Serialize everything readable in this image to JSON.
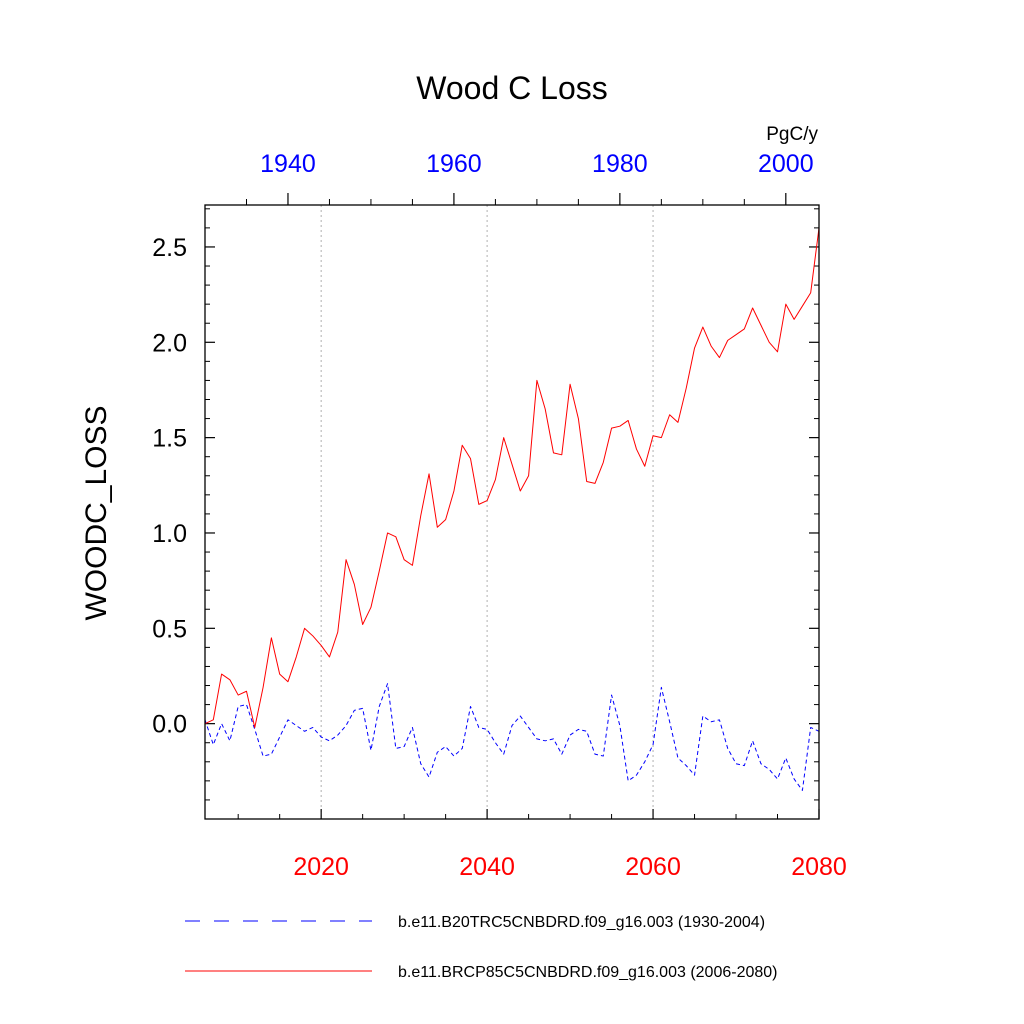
{
  "chart_data": {
    "type": "line",
    "title": "Wood C Loss",
    "ylabel": "WOODC_LOSS",
    "units": "PgC/y",
    "ylim": [
      -0.5,
      2.72
    ],
    "y_ticks": [
      0.0,
      0.5,
      1.0,
      1.5,
      2.0,
      2.5
    ],
    "y_tick_labels": [
      "0.0",
      "0.5",
      "1.0",
      "1.5",
      "2.0",
      "2.5"
    ],
    "grid": "vertical dotted lines at bottom-axis major ticks",
    "legend_position": "bottom",
    "colors": {
      "hist": "#0000ff",
      "future": "#ff0000"
    },
    "top_axis": {
      "xlim": [
        1930,
        2004
      ],
      "ticks": [
        1940,
        1960,
        1980,
        2000
      ],
      "tick_labels": [
        "1940",
        "1960",
        "1980",
        "2000"
      ],
      "minor_ticks": [
        1935,
        1945,
        1950,
        1955,
        1965,
        1970,
        1975,
        1985,
        1990,
        1995
      ],
      "color": "#0000ff"
    },
    "bottom_axis": {
      "xlim": [
        2006,
        2080
      ],
      "ticks": [
        2020,
        2040,
        2060,
        2080
      ],
      "tick_labels": [
        "2020",
        "2040",
        "2060",
        "2080"
      ],
      "minor_ticks": [
        2010,
        2015,
        2025,
        2030,
        2035,
        2045,
        2050,
        2055,
        2065,
        2070,
        2075
      ],
      "color": "#ff0000"
    },
    "series": [
      {
        "name": "b.e11.B20TRC5CNBDRD.f09_g16.003 (1930-2004)",
        "axis": "top",
        "style": "dashed",
        "color": "#0000ff",
        "x_start": 1930,
        "values": [
          0.02,
          -0.11,
          0.0,
          -0.09,
          0.09,
          0.1,
          -0.03,
          -0.17,
          -0.16,
          -0.07,
          0.02,
          -0.01,
          -0.04,
          -0.02,
          -0.07,
          -0.09,
          -0.06,
          -0.01,
          0.07,
          0.08,
          -0.14,
          0.09,
          0.21,
          -0.13,
          -0.12,
          -0.02,
          -0.21,
          -0.28,
          -0.15,
          -0.12,
          -0.17,
          -0.13,
          0.09,
          -0.02,
          -0.03,
          -0.1,
          -0.16,
          -0.01,
          0.04,
          -0.02,
          -0.08,
          -0.09,
          -0.08,
          -0.16,
          -0.06,
          -0.03,
          -0.04,
          -0.16,
          -0.17,
          0.15,
          -0.01,
          -0.3,
          -0.27,
          -0.2,
          -0.11,
          0.19,
          0.01,
          -0.18,
          -0.22,
          -0.27,
          0.04,
          0.01,
          0.02,
          -0.13,
          -0.21,
          -0.22,
          -0.09,
          -0.21,
          -0.24,
          -0.29,
          -0.18,
          -0.29,
          -0.35,
          -0.02,
          -0.04
        ]
      },
      {
        "name": "b.e11.BRCP85C5CNBDRD.f09_g16.003 (2006-2080)",
        "axis": "bottom",
        "style": "solid",
        "color": "#ff0000",
        "x_start": 2006,
        "values": [
          0.0,
          0.02,
          0.26,
          0.23,
          0.15,
          0.17,
          -0.02,
          0.19,
          0.45,
          0.26,
          0.22,
          0.35,
          0.5,
          0.46,
          0.41,
          0.35,
          0.48,
          0.86,
          0.73,
          0.52,
          0.61,
          0.8,
          1.0,
          0.98,
          0.86,
          0.83,
          1.09,
          1.31,
          1.03,
          1.07,
          1.22,
          1.46,
          1.39,
          1.15,
          1.17,
          1.28,
          1.5,
          1.36,
          1.22,
          1.3,
          1.8,
          1.65,
          1.42,
          1.41,
          1.78,
          1.6,
          1.27,
          1.26,
          1.37,
          1.55,
          1.56,
          1.59,
          1.44,
          1.35,
          1.51,
          1.5,
          1.62,
          1.58,
          1.76,
          1.97,
          2.08,
          1.98,
          1.92,
          2.01,
          2.04,
          2.07,
          2.18,
          2.09,
          2.0,
          1.95,
          2.2,
          2.12,
          2.19,
          2.26,
          2.6
        ]
      }
    ]
  }
}
